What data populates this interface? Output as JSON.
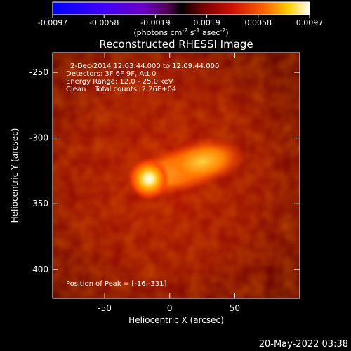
{
  "chart_data": {
    "type": "heatmap",
    "title": "Reconstructed RHESSI Image",
    "xlabel": "Heliocentric X (arcsec)",
    "ylabel": "Heliocentric Y (arcsec)",
    "xlim": [
      -90,
      100
    ],
    "ylim": [
      -422,
      -235
    ],
    "xticks": [
      -50,
      0,
      50
    ],
    "yticks": [
      -250,
      -300,
      -350,
      -400
    ],
    "colorbar": {
      "ticks": [
        "-0.0097",
        "-0.0058",
        "-0.0019",
        "0.0019",
        "0.0058",
        "0.0097"
      ],
      "range": [
        -0.0097,
        0.0097
      ],
      "unit_main": "(photons cm",
      "unit_exp1": "-2",
      "unit_mid": " s",
      "unit_exp2": "-1",
      "unit_mid2": " asec",
      "unit_exp3": "-2",
      "unit_end": ")"
    },
    "info": [
      "2-Dec-2014 12:03:44.000 to 12:09:44.000",
      "Detectors: 3F 6F 9F, Att 0",
      "Energy Range: 12.0 - 25.0 keV",
      "Clean    Total counts: 2.26E+04"
    ],
    "peak_label": "Position of Peak = [-16,-331]",
    "sources": [
      {
        "x": -16,
        "y": -331,
        "intensity": 1.0,
        "size": 10
      },
      {
        "x": 25,
        "y": -318,
        "intensity": 0.7,
        "size": 14
      },
      {
        "x": 5,
        "y": -325,
        "intensity": 0.6,
        "size": 14
      }
    ]
  },
  "footer": {
    "date": "20-May-2022 03:38"
  }
}
